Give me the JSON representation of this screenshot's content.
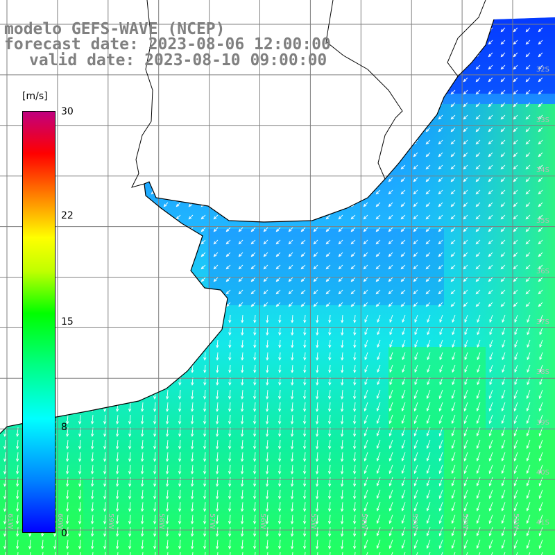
{
  "title": {
    "line1": "modelo GEFS-WAVE (NCEP)",
    "line2": "forecast date: 2023-08-06 12:00:00",
    "line3": "valid date: 2023-08-10 09:00:00"
  },
  "colorbar": {
    "units": "[m/s]",
    "ticks": [
      "30",
      "22",
      "15",
      "8",
      "0"
    ],
    "tick_values": [
      30,
      22,
      15,
      8,
      0
    ],
    "colors": [
      "#0000ff",
      "#00a0ff",
      "#00ffff",
      "#00ff80",
      "#00ff00",
      "#80ff00",
      "#ffff00",
      "#ff8000",
      "#ff0000",
      "#ff0080",
      "#c00080"
    ]
  },
  "grid": {
    "lat_labels": [
      "32S",
      "33S",
      "34S",
      "35S",
      "36S",
      "37S",
      "38S",
      "39S",
      "40S",
      "41S"
    ],
    "lon_labels": [
      "61W",
      "60W",
      "59W",
      "58W",
      "57W",
      "56W",
      "55W",
      "54W",
      "53W",
      "52W",
      "51W"
    ]
  },
  "colors": {
    "land": "#ffffff",
    "coast": "#000000",
    "gridline": "#7f7f7f",
    "arrow": "#ffffff"
  }
}
